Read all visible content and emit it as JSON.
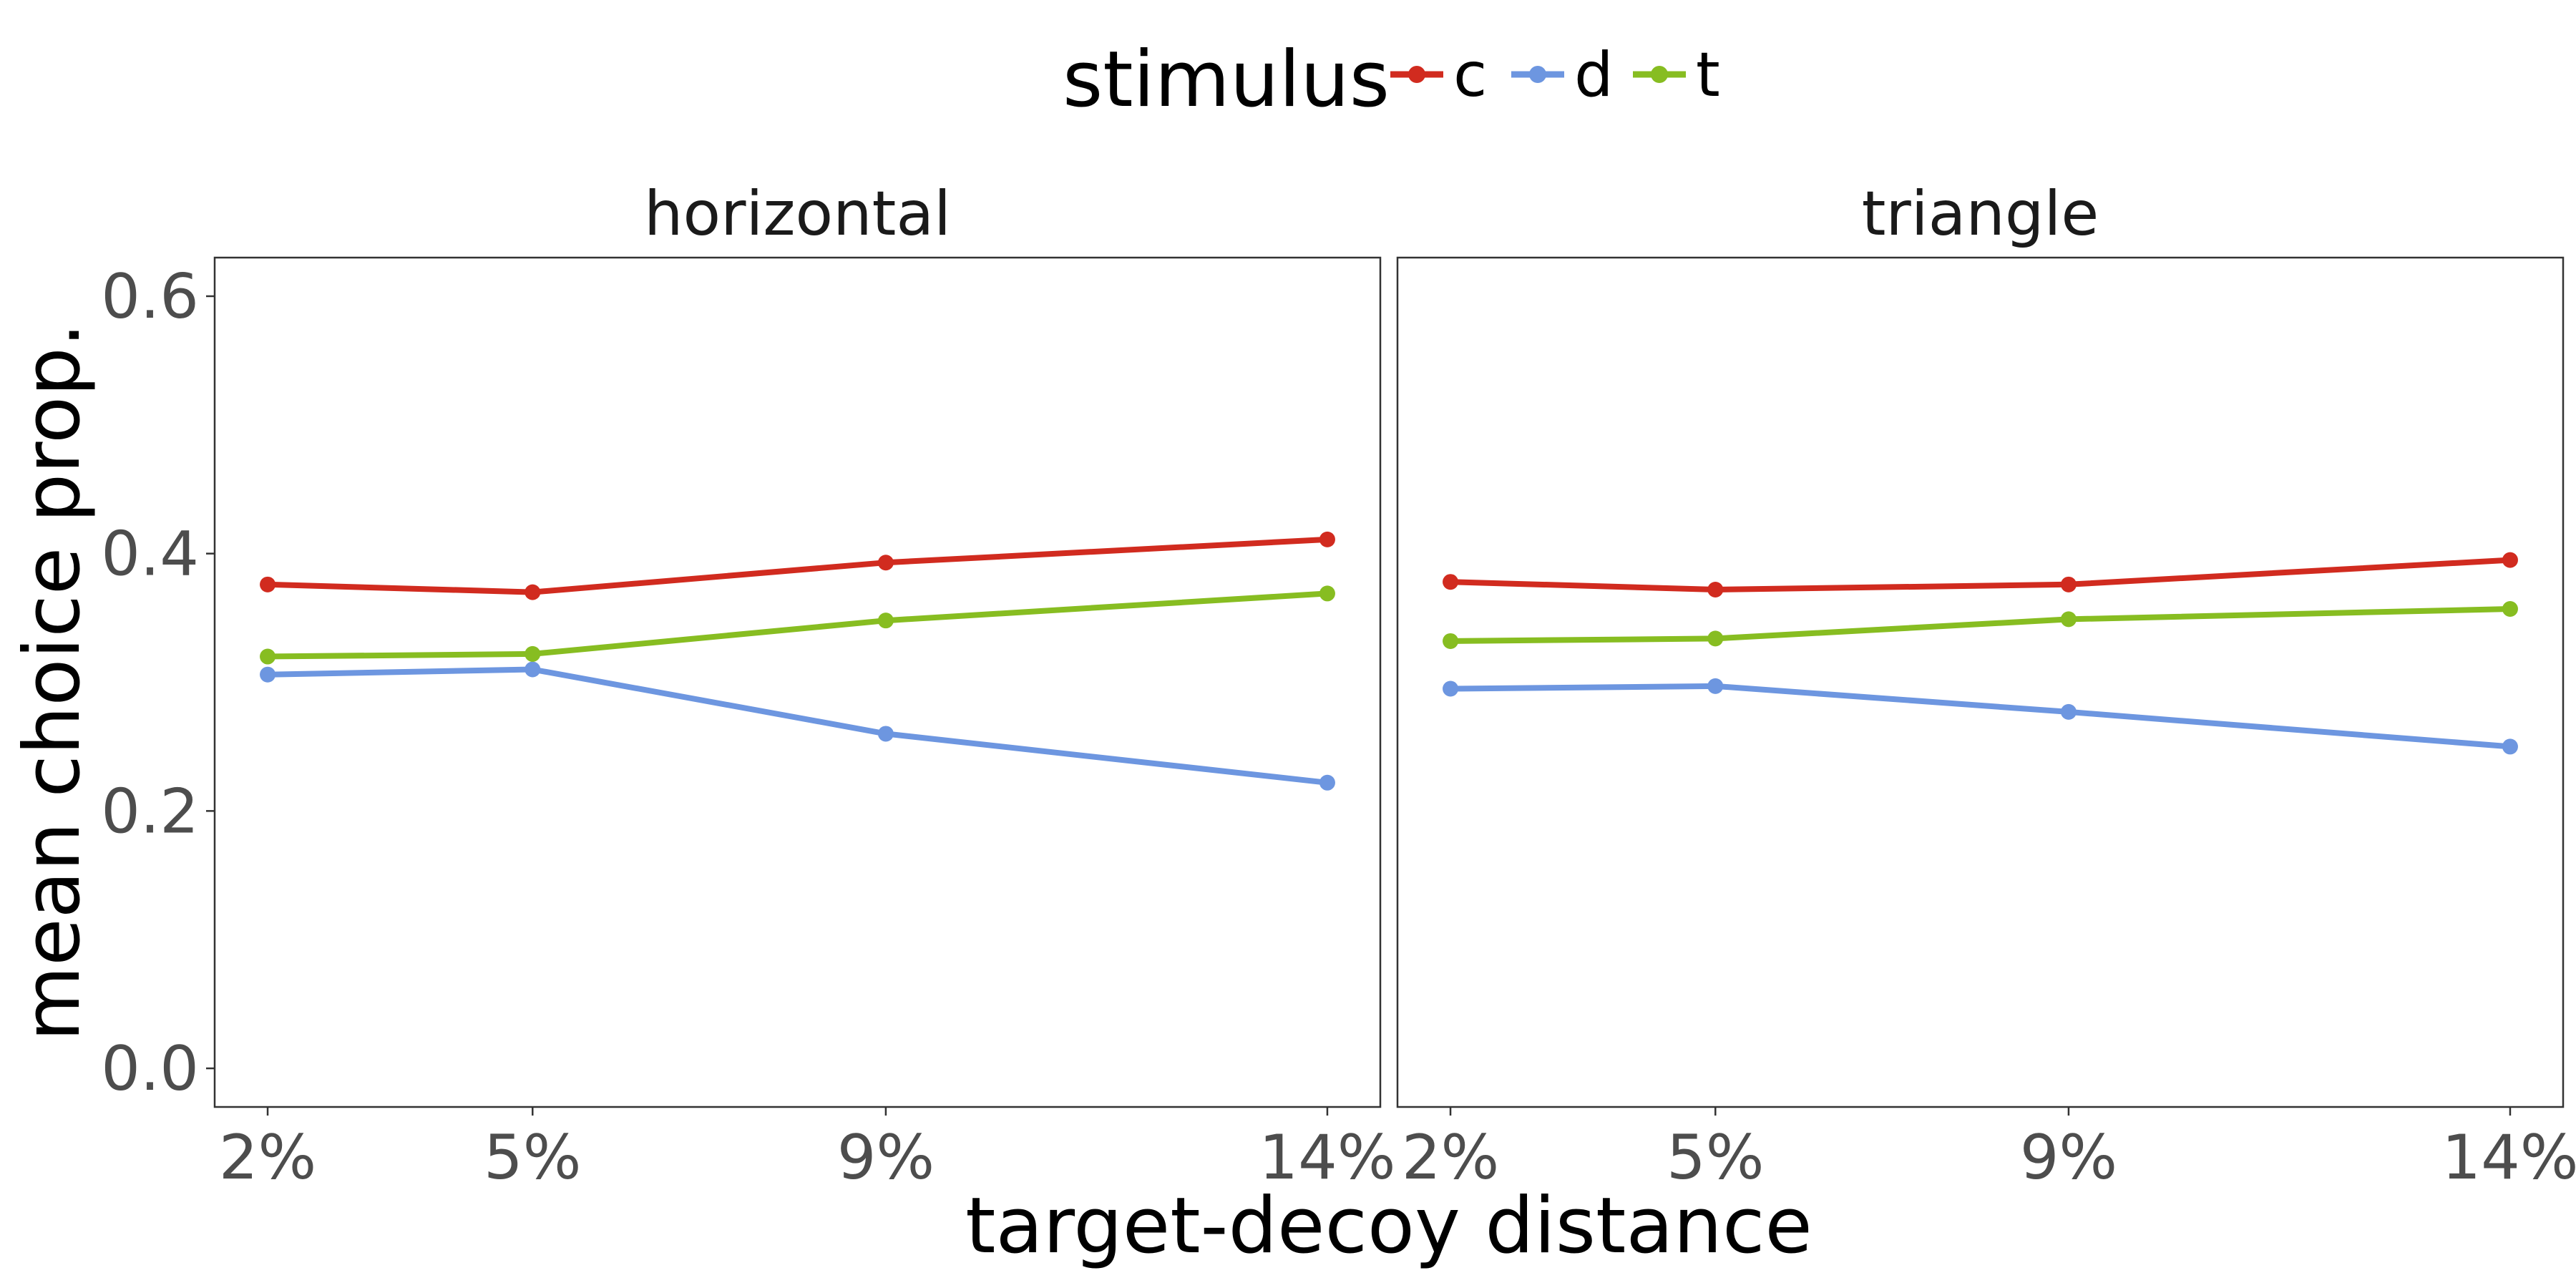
{
  "chart_data": {
    "type": "line",
    "xlabel": "target-decoy distance",
    "ylabel": "mean choice prop.",
    "x_categories": [
      "2%",
      "5%",
      "9%",
      "14%"
    ],
    "x_values": [
      2,
      5,
      9,
      14
    ],
    "ylim": [
      -0.03,
      0.63
    ],
    "y_ticks": [
      0.0,
      0.2,
      0.4,
      0.6
    ],
    "y_tick_labels": [
      "0.0",
      "0.2",
      "0.4",
      "0.6"
    ],
    "grid": false,
    "legend": {
      "title": "stimulus",
      "position": "top",
      "entries": [
        {
          "label": "c",
          "color": "#d12b1f"
        },
        {
          "label": "d",
          "color": "#6d96e0"
        },
        {
          "label": "t",
          "color": "#87bd21"
        }
      ]
    },
    "panels": [
      {
        "title": "horizontal",
        "series": [
          {
            "name": "c",
            "color": "#d12b1f",
            "values": [
              0.376,
              0.37,
              0.393,
              0.411
            ]
          },
          {
            "name": "d",
            "color": "#6d96e0",
            "values": [
              0.306,
              0.31,
              0.26,
              0.222
            ]
          },
          {
            "name": "t",
            "color": "#87bd21",
            "values": [
              0.32,
              0.322,
              0.348,
              0.369
            ]
          }
        ]
      },
      {
        "title": "triangle",
        "series": [
          {
            "name": "c",
            "color": "#d12b1f",
            "values": [
              0.378,
              0.372,
              0.376,
              0.395
            ]
          },
          {
            "name": "d",
            "color": "#6d96e0",
            "values": [
              0.295,
              0.297,
              0.277,
              0.25
            ]
          },
          {
            "name": "t",
            "color": "#87bd21",
            "values": [
              0.332,
              0.334,
              0.349,
              0.357
            ]
          }
        ]
      }
    ]
  }
}
